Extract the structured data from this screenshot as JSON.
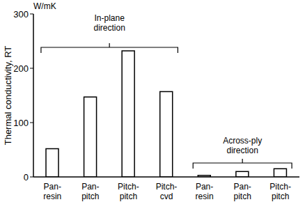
{
  "chart_data": {
    "type": "bar",
    "y_label": "Thermal conductivity, RT",
    "y_unit": "W/mK",
    "categories": [
      "Pan-resin",
      "Pan-pitch",
      "Pitch-pitch",
      "Pitch-cvd",
      "Pan-resin",
      "Pan-pitch",
      "Pitch-pitch"
    ],
    "values": [
      52,
      147,
      232,
      157,
      3,
      10,
      15
    ],
    "color": "#ffffff",
    "ylim": [
      0,
      300
    ],
    "yticks": [
      0,
      100,
      200,
      300
    ],
    "grid": false,
    "annotations": [
      {
        "text": "In-plane direction",
        "span": [
          0,
          3
        ]
      },
      {
        "text": "Across-ply direction",
        "span": [
          4,
          6
        ]
      }
    ]
  }
}
